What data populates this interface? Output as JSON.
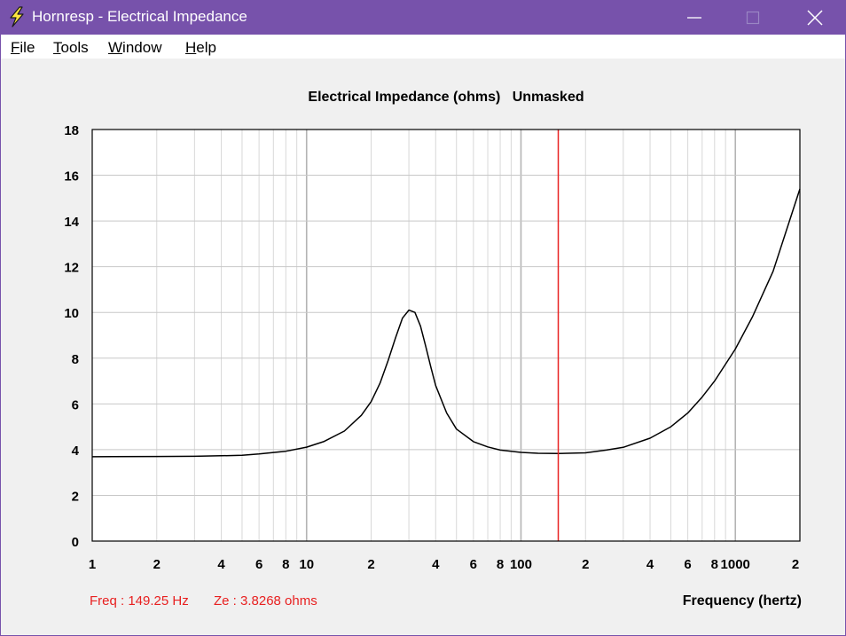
{
  "window": {
    "title": "Hornresp - Electrical Impedance",
    "title_bar_color": "#7752ab"
  },
  "menu": {
    "items": [
      {
        "label": "File",
        "accel": "F",
        "rest": "ile"
      },
      {
        "label": "Tools",
        "accel": "T",
        "rest": "ools"
      },
      {
        "label": "Window",
        "accel": "W",
        "rest": "indow"
      },
      {
        "label": "Help",
        "accel": "H",
        "rest": "elp"
      }
    ]
  },
  "status": {
    "freq": "Freq : 149.25 Hz",
    "ze": "Ze : 3.8268 ohms",
    "color": "#e82020"
  },
  "chart_data": {
    "type": "line",
    "title": "Electrical Impedance (ohms)   Unmasked",
    "xlabel": "Frequency (hertz)",
    "ylabel": "",
    "xscale": "log",
    "xlim": [
      1,
      2000
    ],
    "ylim": [
      0,
      18
    ],
    "grid": true,
    "x_tick_labels": [
      "1",
      "2",
      "4",
      "6",
      "8",
      "10",
      "2",
      "4",
      "6",
      "8",
      "100",
      "2",
      "4",
      "6",
      "8",
      "1000",
      "2"
    ],
    "x_tick_values": [
      1,
      2,
      4,
      6,
      8,
      10,
      20,
      40,
      60,
      80,
      100,
      200,
      400,
      600,
      800,
      1000,
      2000
    ],
    "y_tick_labels": [
      "0",
      "2",
      "4",
      "6",
      "8",
      "10",
      "12",
      "14",
      "16",
      "18"
    ],
    "y_tick_values": [
      0,
      2,
      4,
      6,
      8,
      10,
      12,
      14,
      16,
      18
    ],
    "cursor_frequency": 149.25,
    "cursor_color": "#e82020",
    "series": [
      {
        "color": "#000000",
        "x": [
          1,
          2,
          3,
          4,
          5,
          6,
          8,
          10,
          12,
          15,
          18,
          20,
          22,
          24,
          26,
          28,
          30,
          32,
          34,
          36,
          38,
          40,
          45,
          50,
          60,
          70,
          80,
          100,
          120,
          150,
          200,
          250,
          300,
          400,
          500,
          600,
          700,
          800,
          1000,
          1200,
          1500,
          2000
        ],
        "y": [
          3.69,
          3.7,
          3.71,
          3.73,
          3.75,
          3.81,
          3.93,
          4.11,
          4.35,
          4.81,
          5.5,
          6.1,
          6.9,
          7.9,
          8.9,
          9.75,
          10.1,
          10.0,
          9.4,
          8.5,
          7.6,
          6.8,
          5.6,
          4.9,
          4.35,
          4.12,
          3.98,
          3.88,
          3.84,
          3.83,
          3.86,
          3.98,
          4.1,
          4.5,
          5.0,
          5.6,
          6.3,
          7.0,
          8.4,
          9.8,
          11.8,
          15.4
        ]
      }
    ]
  }
}
